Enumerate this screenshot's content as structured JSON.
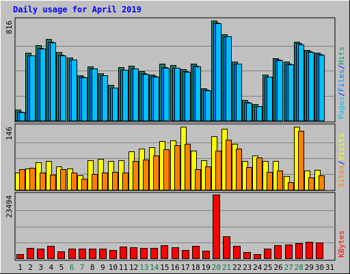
{
  "chart_data": {
    "type": "bar",
    "title": "Daily usage for April 2019",
    "categories": [
      "1",
      "2",
      "3",
      "4",
      "5",
      "6",
      "7",
      "8",
      "9",
      "10",
      "11",
      "12",
      "13",
      "14",
      "15",
      "16",
      "17",
      "18",
      "19",
      "20",
      "21",
      "22",
      "23",
      "24",
      "25",
      "26",
      "27",
      "28",
      "29",
      "30",
      "31"
    ],
    "weekend_days": [
      "6",
      "7",
      "13",
      "14",
      "20",
      "21",
      "27",
      "28"
    ],
    "panels": [
      {
        "ylabel_parts": [
          {
            "text": "Pages",
            "color": "#00c0ff"
          },
          {
            "text": "/",
            "color": "#0000ff"
          },
          {
            "text": "Files",
            "color": "#0080ff"
          },
          {
            "text": "/",
            "color": "#0000ff"
          },
          {
            "text": "Hits",
            "color": "#00a060"
          }
        ],
        "max_tick": 816,
        "ylim": [
          0,
          816
        ],
        "series": [
          {
            "name": "Hits",
            "color": "#208060",
            "values": [
              90,
              555,
              612,
              667,
              560,
              515,
              370,
              443,
              386,
              290,
              436,
              445,
              400,
              376,
              462,
              450,
              418,
              463,
              265,
              816,
              706,
              482,
              165,
              134,
              372,
              509,
              480,
              642,
              577,
              556,
              0
            ]
          },
          {
            "name": "Files",
            "color": "#0080ff",
            "values": [
              70,
              530,
              590,
              640,
              535,
              500,
              355,
              427,
              370,
              270,
              416,
              425,
              385,
              361,
              436,
              430,
              400,
              445,
              250,
              801,
              690,
              465,
              150,
              120,
              360,
              499,
              465,
              630,
              565,
              541,
              0
            ]
          },
          {
            "name": "Pages",
            "color": "#00c0ff",
            "values": [
              67,
              529,
              587,
              637,
              532,
              498,
              350,
              425,
              367,
              267,
              414,
              422,
              380,
              359,
              432,
              428,
              397,
              442,
              247,
              796,
              688,
              463,
              147,
              117,
              356,
              494,
              460,
              623,
              561,
              535,
              0
            ]
          }
        ]
      },
      {
        "ylabel_parts": [
          {
            "text": "Sites",
            "color": "#ff8000"
          },
          {
            "text": "/",
            "color": "#0000ff"
          },
          {
            "text": "Visits",
            "color": "#ffff00"
          }
        ],
        "max_tick": 146,
        "ylim": [
          0,
          146
        ],
        "series": [
          {
            "name": "Visits",
            "color": "#ffff00",
            "values": [
              40,
              49,
              63,
              66,
              54,
              49,
              34,
              68,
              71,
              67,
              69,
              89,
              95,
              99,
              113,
              115,
              146,
              90,
              68,
              123,
              141,
              106,
              67,
              80,
              66,
              66,
              32,
              146,
              45,
              46,
              0
            ]
          },
          {
            "name": "Sites",
            "color": "#ff8000",
            "values": [
              47,
              50,
              40,
              35,
              47,
              40,
              26,
              36,
              40,
              42,
              40,
              66,
              70,
              80,
              93,
              103,
              106,
              48,
              54,
              91,
              116,
              96,
              52,
              74,
              42,
              44,
              17,
              137,
              28,
              33,
              0
            ]
          }
        ]
      },
      {
        "ylabel_parts": [
          {
            "text": "KBytes",
            "color": "#ff0000"
          }
        ],
        "max_tick": 23494,
        "ylim": [
          0,
          23494
        ],
        "series": [
          {
            "name": "KBytes",
            "color": "#ff0000",
            "values": [
              1470,
              3880,
              3650,
              4430,
              2590,
              3500,
              3640,
              3550,
              3640,
              2990,
              4280,
              4070,
              3760,
              3760,
              4890,
              3970,
              3120,
              4610,
              2690,
              23494,
              7960,
              4610,
              2390,
              1470,
              3580,
              4850,
              5100,
              5600,
              5970,
              5870,
              0
            ]
          }
        ]
      }
    ]
  }
}
